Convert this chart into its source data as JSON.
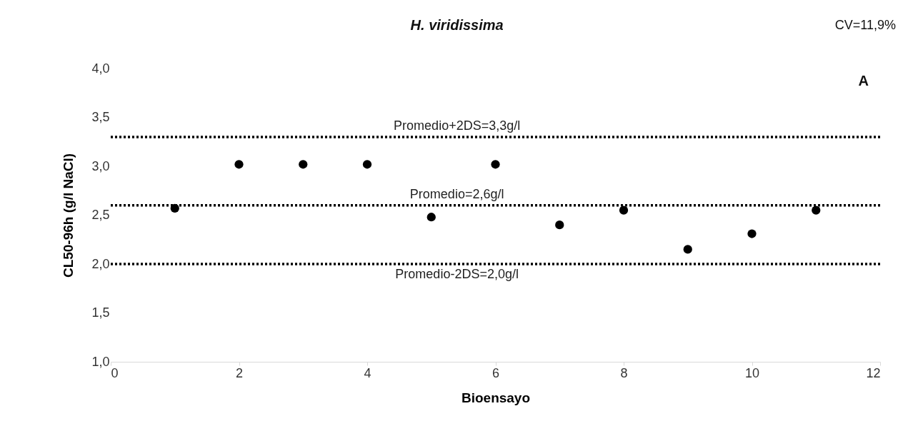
{
  "chart_data": {
    "type": "scatter",
    "title": "H. viridissima",
    "xlabel": "Bioensayo",
    "ylabel": "CL50-96h (g/l NaCl)",
    "x": [
      1,
      2,
      3,
      4,
      5,
      6,
      7,
      8,
      9,
      10,
      11
    ],
    "series": [
      {
        "color": "#000000",
        "values": [
          2.57,
          3.02,
          3.02,
          3.02,
          2.48,
          3.02,
          2.4,
          2.55,
          2.15,
          2.31,
          2.55
        ]
      }
    ],
    "marker": "circle",
    "grid": false,
    "xlim": [
      0,
      12
    ],
    "xticks": [
      0,
      2,
      4,
      6,
      8,
      10,
      12
    ],
    "ylim": [
      1,
      4
    ],
    "yticks": [
      {
        "value": 1,
        "label": "1,0"
      },
      {
        "value": 1.5,
        "label": "1,5"
      },
      {
        "value": 2,
        "label": "2,0"
      },
      {
        "value": 2.5,
        "label": "2,5"
      },
      {
        "value": 3,
        "label": "3,0"
      },
      {
        "value": 3.5,
        "label": "3,5"
      },
      {
        "value": 4,
        "label": "4,0"
      }
    ],
    "ref_lines": [
      {
        "axis": "y",
        "value": 3.3,
        "label": "Promedio+2DS=3,3g/l",
        "color": "#000000",
        "line_style": "dotted"
      },
      {
        "axis": "y",
        "value": 2.6,
        "label": "Promedio=2,6g/l",
        "color": "#000000",
        "line_style": "dotted"
      },
      {
        "axis": "y",
        "value": 2.0,
        "label": "Promedio-2DS=2,0g/l",
        "color": "#000000",
        "line_style": "dotted"
      }
    ],
    "annotations": [
      "A",
      "CV=11,9%"
    ]
  }
}
